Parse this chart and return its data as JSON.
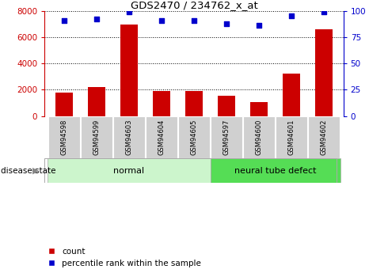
{
  "title": "GDS2470 / 234762_x_at",
  "samples": [
    "GSM94598",
    "GSM94599",
    "GSM94603",
    "GSM94604",
    "GSM94605",
    "GSM94597",
    "GSM94600",
    "GSM94601",
    "GSM94602"
  ],
  "counts": [
    1800,
    2200,
    6950,
    1900,
    1900,
    1550,
    1050,
    3200,
    6600
  ],
  "percentiles": [
    91,
    92,
    99,
    91,
    91,
    88,
    86,
    95,
    99
  ],
  "groups": [
    {
      "label": "normal",
      "start": 0,
      "end": 5,
      "color": "#ccf5cc"
    },
    {
      "label": "neural tube defect",
      "start": 5,
      "end": 9,
      "color": "#66dd66"
    }
  ],
  "ylim_left": [
    0,
    8000
  ],
  "ylim_right": [
    0,
    100
  ],
  "yticks_left": [
    0,
    2000,
    4000,
    6000,
    8000
  ],
  "yticks_right": [
    0,
    25,
    50,
    75,
    100
  ],
  "bar_color": "#cc0000",
  "dot_color": "#0000cc",
  "left_axis_color": "#cc0000",
  "right_axis_color": "#0000cc",
  "tick_label_bg": "#d0d0d0",
  "normal_color": "#ccf5cc",
  "ntd_color": "#55dd55",
  "disease_state_label": "disease state",
  "legend_count": "count",
  "legend_percentile": "percentile rank within the sample"
}
